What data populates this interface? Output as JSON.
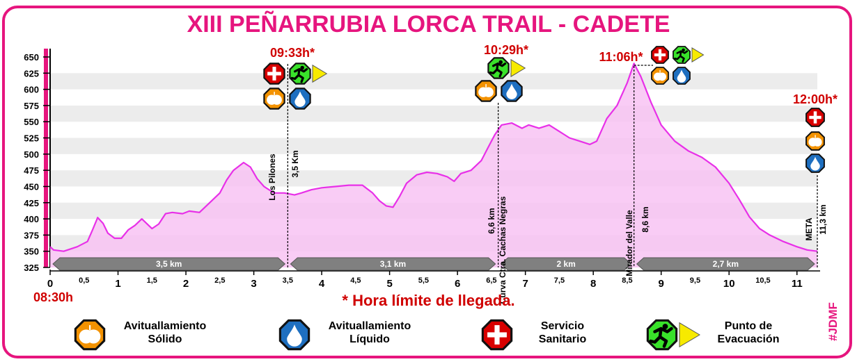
{
  "title": "XIII PEÑARRUBIA LORCA TRAIL - CADETE",
  "start_time": "08:30h",
  "note": "* Hora límite de llegada.",
  "tag": "#JDMF",
  "colors": {
    "accent": "#e6157e",
    "area": "#f8c3f3",
    "line": "#e830e8",
    "time": "#d00000",
    "segment": "#808080"
  },
  "chart_data": {
    "type": "area",
    "title": "XIII PEÑARRUBIA LORCA TRAIL - CADETE",
    "xlim": [
      0,
      11.3
    ],
    "ylim": [
      325,
      650
    ],
    "grid": true,
    "y_ticks": [
      325,
      350,
      375,
      400,
      425,
      450,
      475,
      500,
      525,
      550,
      575,
      600,
      625,
      650
    ],
    "x_major_ticks": [
      "0",
      "1",
      "2",
      "3",
      "4",
      "5",
      "6",
      "7",
      "8",
      "9",
      "10",
      "11"
    ],
    "x_minor_ticks": [
      "0,5",
      "1,5",
      "2,5",
      "3,5",
      "4,5",
      "5,5",
      "6,5",
      "7,5",
      "8,5",
      "9,5",
      "10,5"
    ],
    "profile": {
      "x": [
        0,
        0.05,
        0.2,
        0.4,
        0.55,
        0.62,
        0.7,
        0.78,
        0.85,
        0.95,
        1.05,
        1.15,
        1.25,
        1.35,
        1.5,
        1.6,
        1.7,
        1.8,
        1.95,
        2.05,
        2.2,
        2.35,
        2.5,
        2.6,
        2.7,
        2.85,
        2.95,
        3.05,
        3.15,
        3.3,
        3.45,
        3.6,
        3.7,
        3.85,
        4.0,
        4.2,
        4.4,
        4.6,
        4.75,
        4.85,
        4.95,
        5.05,
        5.15,
        5.25,
        5.4,
        5.55,
        5.7,
        5.85,
        5.95,
        6.05,
        6.2,
        6.35,
        6.45,
        6.55,
        6.65,
        6.8,
        6.95,
        7.05,
        7.2,
        7.35,
        7.5,
        7.65,
        7.8,
        7.95,
        8.05,
        8.2,
        8.35,
        8.5,
        8.6,
        8.7,
        8.85,
        9.0,
        9.2,
        9.4,
        9.6,
        9.8,
        10.0,
        10.15,
        10.3,
        10.45,
        10.6,
        10.8,
        11.0,
        11.15,
        11.3
      ],
      "y": [
        357,
        352,
        350,
        357,
        365,
        382,
        402,
        393,
        378,
        370,
        370,
        383,
        390,
        400,
        385,
        392,
        408,
        410,
        408,
        412,
        410,
        425,
        440,
        460,
        475,
        487,
        480,
        462,
        450,
        440,
        440,
        437,
        440,
        445,
        448,
        450,
        452,
        452,
        440,
        428,
        420,
        418,
        435,
        455,
        468,
        472,
        470,
        465,
        458,
        470,
        475,
        490,
        510,
        530,
        545,
        548,
        540,
        545,
        540,
        545,
        535,
        525,
        520,
        515,
        520,
        555,
        575,
        610,
        640,
        620,
        580,
        545,
        520,
        505,
        495,
        480,
        455,
        430,
        403,
        385,
        375,
        365,
        357,
        352,
        350
      ]
    },
    "checkpoints": [
      {
        "km": 3.5,
        "name": "Los Pilones",
        "distance": "3,5 Km",
        "time": "09:33h*",
        "services": [
          "servicio-sanitario",
          "punto-evacuacion",
          "avituallamiento-solido",
          "avituallamiento-liquido"
        ]
      },
      {
        "km": 6.6,
        "name": "Curva Ctra. Cachas Negras",
        "distance": "6,6 km",
        "time": "10:29h*",
        "services": [
          "punto-evacuacion",
          "avituallamiento-solido",
          "avituallamiento-liquido"
        ]
      },
      {
        "km": 8.6,
        "name": "Mirador del Valle",
        "distance": "8,6 km",
        "time": "11:06h*",
        "services": [
          "servicio-sanitario",
          "punto-evacuacion",
          "avituallamiento-solido",
          "avituallamiento-liquido"
        ]
      },
      {
        "km": 11.3,
        "name": "META",
        "distance": "11,3 km",
        "time": "12:00h*",
        "services": [
          "servicio-sanitario",
          "avituallamiento-solido",
          "avituallamiento-liquido"
        ]
      }
    ],
    "segments": [
      {
        "from": 0,
        "to": 3.5,
        "label": "3,5 km"
      },
      {
        "from": 3.5,
        "to": 6.6,
        "label": "3,1 km"
      },
      {
        "from": 6.6,
        "to": 8.6,
        "label": "2 km"
      },
      {
        "from": 8.6,
        "to": 11.3,
        "label": "2,7 km"
      }
    ]
  },
  "legend": [
    {
      "icon": "avituallamiento-solido",
      "label": "Avituallamiento\nSólido"
    },
    {
      "icon": "avituallamiento-liquido",
      "label": "Avituallamiento\nLíquido"
    },
    {
      "icon": "servicio-sanitario",
      "label": "Servicio\nSanitario"
    },
    {
      "icon": "punto-evacuacion",
      "label": "Punto de\nEvacuación"
    }
  ]
}
